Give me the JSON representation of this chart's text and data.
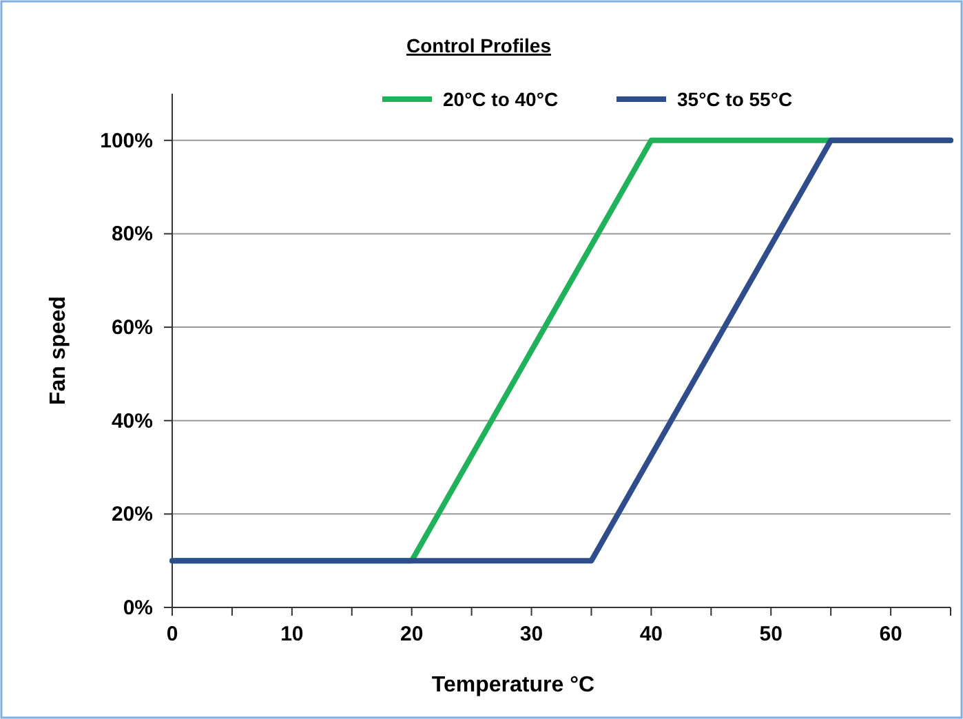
{
  "chart_data": {
    "type": "line",
    "title": "Control Profiles",
    "xlabel": "Temperature °C",
    "ylabel": "Fan speed",
    "series": [
      {
        "name": "20°C to 40°C",
        "color": "#1fb25a",
        "x": [
          0,
          20,
          40,
          65
        ],
        "values": [
          10,
          10,
          100,
          100
        ]
      },
      {
        "name": "35°C to 55°C",
        "color": "#2e4d8a",
        "x": [
          0,
          35,
          55,
          65
        ],
        "values": [
          10,
          10,
          100,
          100
        ]
      }
    ],
    "xlim": [
      0,
      65
    ],
    "xticks": [
      0,
      {
        "value": 5,
        "label": null
      },
      10,
      {
        "value": 15,
        "label": null
      },
      20,
      {
        "value": 25,
        "label": null
      },
      30,
      {
        "value": 35,
        "label": null
      },
      40,
      {
        "value": 45,
        "label": null
      },
      50,
      {
        "value": 55,
        "label": null
      },
      60,
      {
        "value": 65,
        "label": null
      }
    ],
    "ylim": [
      0,
      110
    ],
    "yticks": [
      {
        "value": 0,
        "label": "0%"
      },
      {
        "value": 20,
        "label": "20%"
      },
      {
        "value": 40,
        "label": "40%"
      },
      {
        "value": 60,
        "label": "60%"
      },
      {
        "value": 80,
        "label": "80%"
      },
      {
        "value": 100,
        "label": "100%"
      }
    ],
    "grid": "y",
    "legend": "top",
    "marker": "none",
    "line_style": "solid"
  }
}
